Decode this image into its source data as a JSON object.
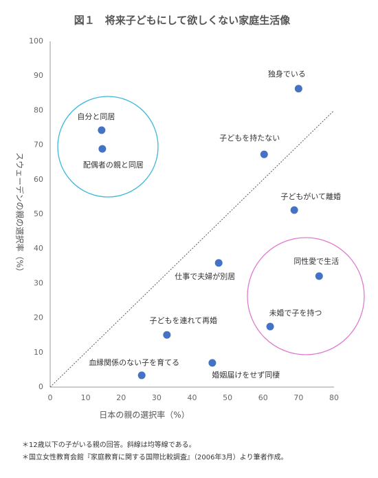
{
  "chart_data": {
    "type": "scatter",
    "title": "図１　将来子どもにして欲しくない家庭生活像",
    "x_label": "日本の親の選択率（%）",
    "y_label": "スウェーデンの親の選択率（%）",
    "labels": [
      "独身でいる",
      "自分と同居",
      "配偶者の親と同居",
      "子どもを持たない",
      "子どもがいて離婚",
      "仕事で夫婦が別居",
      "同性愛で生活",
      "未婚で子を持つ",
      "子どもを連れて再婚",
      "婚姻届けをせず同棲",
      "血縁関係のない子を育てる"
    ],
    "x": [
      70,
      14.5,
      14.7,
      60.3,
      68.8,
      47.5,
      75.8,
      62,
      32.9,
      45.7,
      25.8
    ],
    "y": [
      86.3,
      74.3,
      68.9,
      67.3,
      51.2,
      35.9,
      32.1,
      17.5,
      15.1,
      7,
      3.4
    ],
    "color": "#4472c4",
    "xlim": [
      0,
      80
    ],
    "xticks": [
      0,
      10,
      20,
      30,
      40,
      50,
      60,
      70,
      80
    ],
    "ylim": [
      0,
      100
    ],
    "yticks": [
      0,
      10,
      20,
      30,
      40,
      50,
      60,
      70,
      80,
      90,
      100
    ],
    "grid": false,
    "notes": [
      "＊12歳以下の子がいる親の回答。斜線は均等線である。",
      "＊国立女性教育会館『家庭教育に関する国際比較調査』（2006年3月）より筆者作成。"
    ]
  }
}
